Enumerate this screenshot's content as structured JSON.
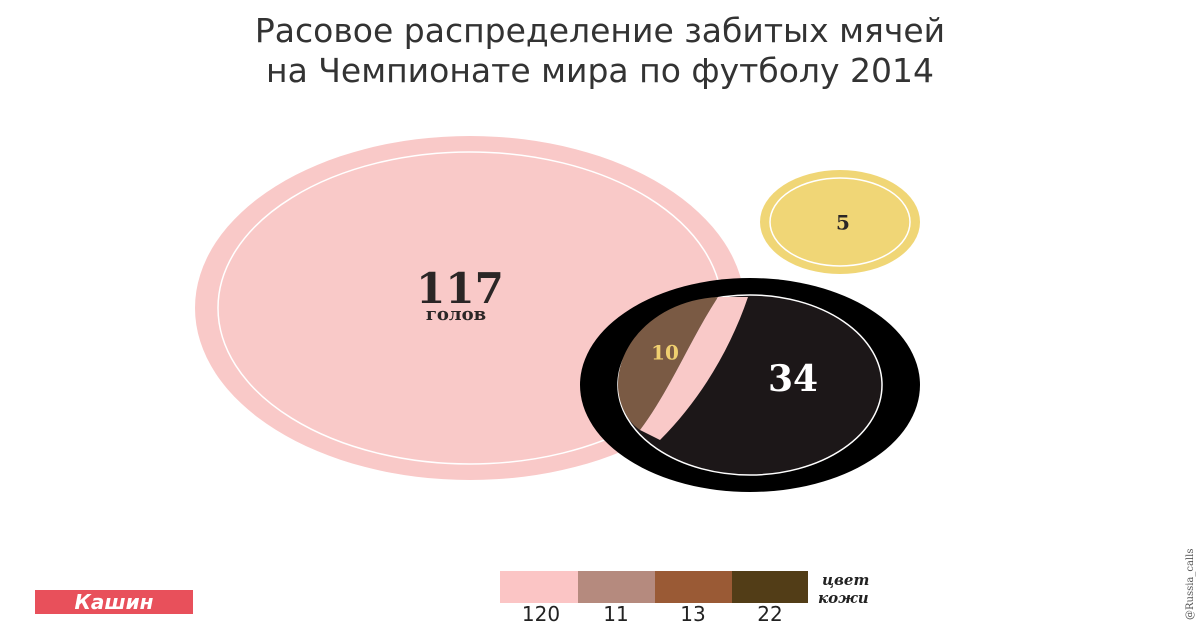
{
  "header": {
    "title_line1": "Расовое распределение забитых мячей",
    "title_line2": "на Чемпионате мира по футболу 2014"
  },
  "circles": {
    "pink": {
      "value": "117",
      "unit": "голов"
    },
    "yellow": {
      "value": "5"
    },
    "brown": {
      "value": "10"
    },
    "black": {
      "value": "34"
    }
  },
  "legend": {
    "items": [
      "120",
      "11",
      "13",
      "22"
    ],
    "caption_line1": "цвет",
    "caption_line2": "кожи"
  },
  "footer": {
    "logo": "Кашин",
    "credit": "@Russia_calls"
  }
}
